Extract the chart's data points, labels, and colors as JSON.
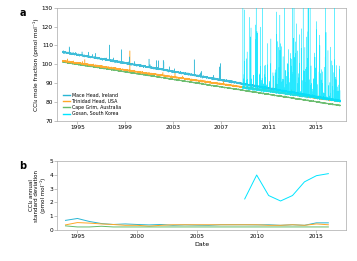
{
  "title_a": "a",
  "title_b": "b",
  "ylabel_a": "CCl₄ mole fraction (pmol mol⁻¹)",
  "ylabel_b": "CCl₄ annual\nstandard deviation\n(pmol mol⁻¹)",
  "xlabel": "Date",
  "ylim_a": [
    70,
    130
  ],
  "ylim_b": [
    0,
    5
  ],
  "yticks_a": [
    70,
    80,
    90,
    100,
    110,
    120,
    130
  ],
  "yticks_b": [
    0,
    1,
    2,
    3,
    4,
    5
  ],
  "xticks_a": [
    1995,
    1999,
    2003,
    2007,
    2011,
    2015
  ],
  "xticks_b": [
    1995,
    2000,
    2005,
    2010,
    2015
  ],
  "xlim": [
    1993.3,
    2017.5
  ],
  "colors": {
    "mace_head": "#29b6d4",
    "trinidad": "#ffa726",
    "cape_grim": "#66bb6a",
    "gosan": "#00e5ff"
  },
  "legend_labels": [
    "Mace Head, Ireland",
    "Trinidad Head, USA",
    "Cape Grim, Australia",
    "Gosan, South Korea"
  ],
  "bg_color": "#ffffff"
}
